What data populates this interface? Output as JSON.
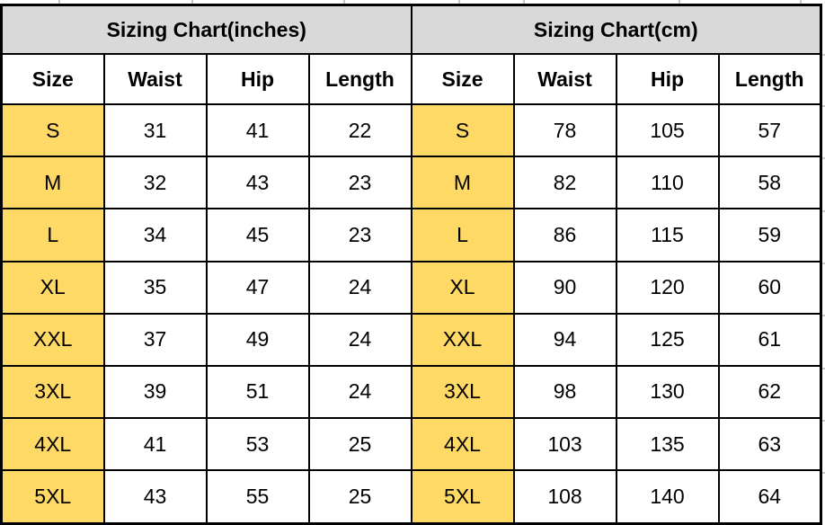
{
  "colors": {
    "border": "#000000",
    "section_header_bg": "#d9d9d9",
    "size_column_bg": "#ffd966",
    "cell_bg": "#ffffff",
    "text": "#000000"
  },
  "chart_data": [
    {
      "type": "table",
      "title": "Sizing Chart(inches)",
      "columns": [
        "Size",
        "Waist",
        "Hip",
        "Length"
      ],
      "rows": [
        [
          "S",
          31,
          41,
          22
        ],
        [
          "M",
          32,
          43,
          23
        ],
        [
          "L",
          34,
          45,
          23
        ],
        [
          "XL",
          35,
          47,
          24
        ],
        [
          "XXL",
          37,
          49,
          24
        ],
        [
          "3XL",
          39,
          51,
          24
        ],
        [
          "4XL",
          41,
          53,
          25
        ],
        [
          "5XL",
          43,
          55,
          25
        ]
      ]
    },
    {
      "type": "table",
      "title": "Sizing Chart(cm)",
      "columns": [
        "Size",
        "Waist",
        "Hip",
        "Length"
      ],
      "rows": [
        [
          "S",
          78,
          105,
          57
        ],
        [
          "M",
          82,
          110,
          58
        ],
        [
          "L",
          86,
          115,
          59
        ],
        [
          "XL",
          90,
          120,
          60
        ],
        [
          "XXL",
          94,
          125,
          61
        ],
        [
          "3XL",
          98,
          130,
          62
        ],
        [
          "4XL",
          103,
          135,
          63
        ],
        [
          "5XL",
          108,
          140,
          64
        ]
      ]
    }
  ]
}
